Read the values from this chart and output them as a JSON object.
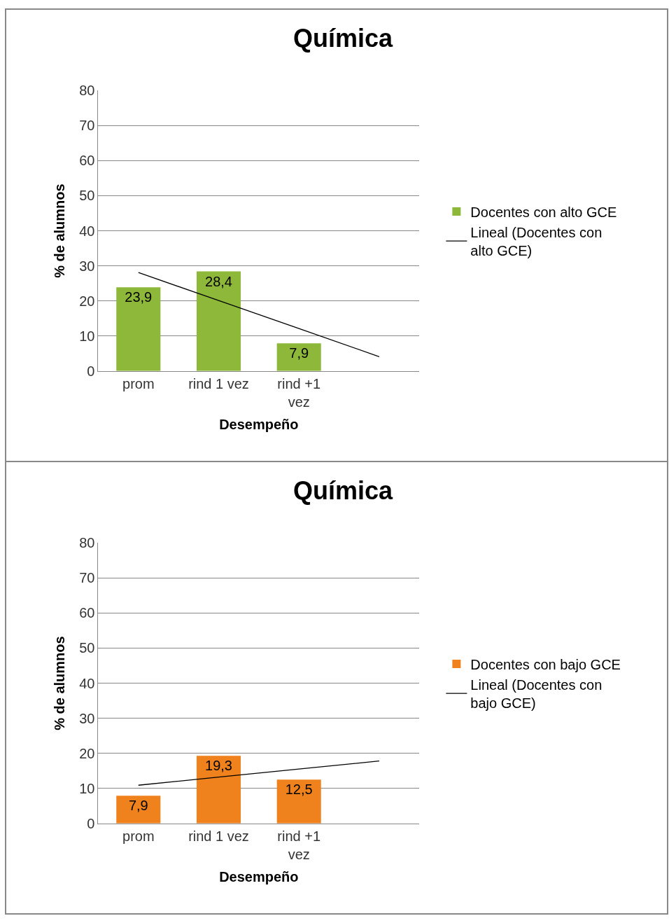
{
  "chart_data": [
    {
      "type": "bar",
      "title": "Química",
      "xlabel": "Desempeño",
      "ylabel": "% de alumnos",
      "categories": [
        "prom",
        "rind 1 vez",
        "rind +1 vez",
        null
      ],
      "series": [
        {
          "name": "Docentes con alto GCE",
          "color": "#8db83a",
          "values": [
            23.9,
            28.4,
            7.9,
            null
          ],
          "value_labels": [
            "23,9",
            "28,4",
            "7,9",
            null
          ]
        },
        {
          "name": "Lineal (Docentes con alto GCE)",
          "type": "line",
          "color": "#000000",
          "values": [
            28.1,
            20.1,
            12.1,
            4.1
          ]
        }
      ],
      "ylim": [
        0,
        80
      ],
      "yticks": [
        0,
        10,
        20,
        30,
        40,
        50,
        60,
        70,
        80
      ],
      "grid": "y",
      "legend": "right"
    },
    {
      "type": "bar",
      "title": "Química",
      "xlabel": "Desempeño",
      "ylabel": "% de alumnos",
      "categories": [
        "prom",
        "rind 1 vez",
        "rind +1 vez",
        null
      ],
      "series": [
        {
          "name": "Docentes con bajo GCE",
          "color": "#f0821e",
          "values": [
            7.9,
            19.3,
            12.5,
            null
          ],
          "value_labels": [
            "7,9",
            "19,3",
            "12,5",
            null
          ]
        },
        {
          "name": "Lineal (Docentes con bajo GCE)",
          "type": "line",
          "color": "#000000",
          "values": [
            10.9,
            13.2,
            15.5,
            17.8
          ]
        }
      ],
      "ylim": [
        0,
        80
      ],
      "yticks": [
        0,
        10,
        20,
        30,
        40,
        50,
        60,
        70,
        80
      ],
      "grid": "y",
      "legend": "right"
    }
  ]
}
